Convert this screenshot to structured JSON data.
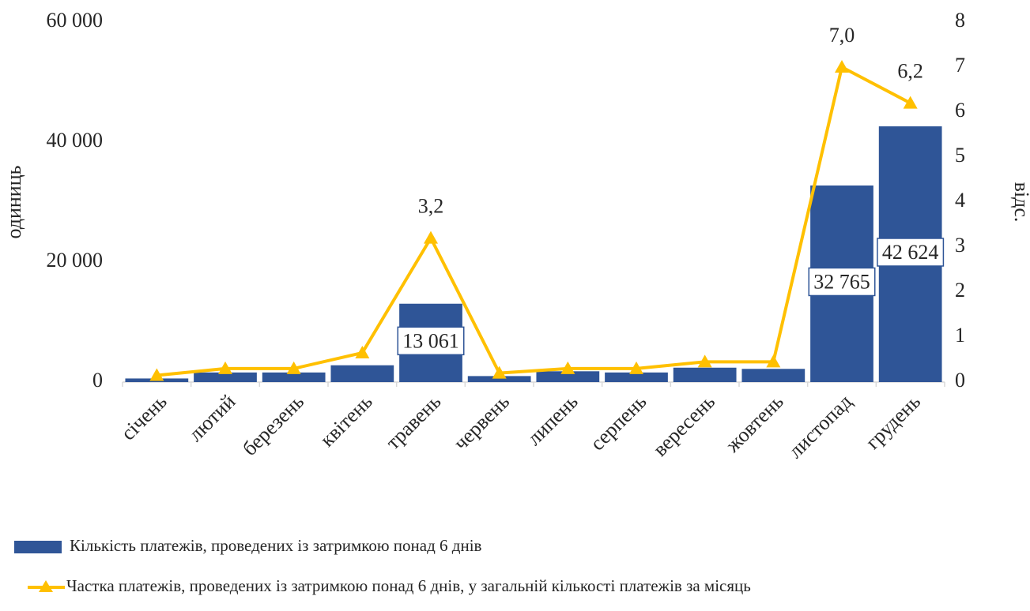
{
  "chart_data": {
    "type": "bar",
    "categories": [
      "січень",
      "лютий",
      "березень",
      "квітень",
      "травень",
      "червень",
      "липень",
      "серпень",
      "вересень",
      "жовтень",
      "листопад",
      "грудень"
    ],
    "ylabel": "одиниць",
    "y2label": "відс.",
    "ylim": [
      0,
      60000
    ],
    "yticks": [
      0,
      {
        "value": 20000,
        "label": "20 000"
      },
      {
        "value": 40000,
        "label": "40 000"
      },
      {
        "value": 60000,
        "label": "60 000"
      }
    ],
    "y2lim": [
      0,
      8
    ],
    "y2ticks": [
      0,
      1,
      2,
      3,
      4,
      5,
      6,
      7,
      8
    ],
    "legend": "bottom",
    "series": [
      {
        "name": "Кількість платежів, проведених із затримкою понад 6 днів",
        "type": "bar",
        "color": "#2f5597",
        "values": [
          600,
          1600,
          1600,
          2800,
          13061,
          1000,
          1800,
          1600,
          2400,
          2200,
          32765,
          42624
        ],
        "value_labels": [
          null,
          null,
          null,
          null,
          "13 061",
          null,
          null,
          null,
          null,
          null,
          "32 765",
          "42 624"
        ]
      },
      {
        "name": "Частка платежів, проведених із затримкою понад 6 днів, у загальній кількості платежів за місяць",
        "type": "line",
        "axis": "y2",
        "color": "#ffc000",
        "values": [
          0.15,
          0.3,
          0.3,
          0.65,
          3.2,
          0.2,
          0.3,
          0.3,
          0.45,
          0.45,
          7.0,
          6.2
        ],
        "value_labels": [
          null,
          null,
          null,
          null,
          "3,2",
          null,
          null,
          null,
          null,
          null,
          "7,0",
          "6,2"
        ]
      }
    ]
  }
}
